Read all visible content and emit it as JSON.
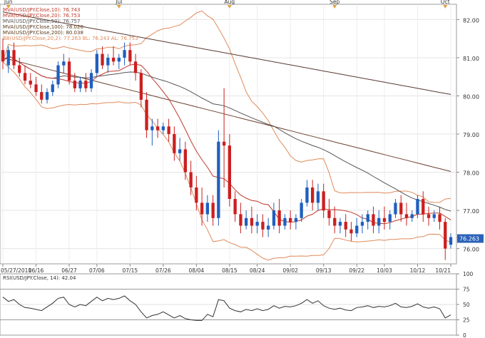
{
  "chart_data": [
    {
      "type": "candlestick",
      "instrument": "USD/JPY",
      "month_labels": [
        "Jun",
        "Jul",
        "Aug",
        "Sep",
        "Oct"
      ],
      "date_labels": [
        "05/27/2011",
        "06/16",
        "06/27",
        "07/06",
        "07/15",
        "07/26",
        "08/04",
        "08/15",
        "08/24",
        "09/02",
        "09/13",
        "09/22",
        "10/03",
        "10/12",
        "10/21"
      ],
      "y_ticks": [
        "82.00",
        "81.00",
        "80.00",
        "79.00",
        "78.00",
        "77.00",
        "76.00"
      ],
      "ylim": [
        75.6,
        82.4
      ],
      "last_price": "76.263",
      "legend": [
        {
          "text": "MVA(USD/JPY.Close,10): 76.743",
          "color": "#c0392b"
        },
        {
          "text": "MVA(USD/JPY.Close,20): 76.753",
          "color": "#c0392b"
        },
        {
          "text": "MVA(USD/JPY.Close,50): 76.757",
          "color": "#555555"
        },
        {
          "text": "MVA(USD/JPY.Close,100): 78.020",
          "color": "#5a3a1a"
        },
        {
          "text": "MVA(USD/JPY.Close,200): 80.038",
          "color": "#5a3a1a"
        },
        {
          "text": "BB(USD/JPY.Close,20,2): 77.263  BL: 76.243  AL: 76.753",
          "color": "#e08a5a"
        }
      ],
      "candles": [
        [
          81.2,
          81.5,
          80.9,
          80.7
        ],
        [
          80.8,
          81.3,
          81.2,
          80.6
        ],
        [
          81.2,
          81.4,
          80.8,
          80.7
        ],
        [
          80.8,
          81.0,
          80.6,
          80.5
        ],
        [
          80.6,
          80.8,
          80.4,
          80.3
        ],
        [
          80.4,
          80.6,
          80.3,
          80.2
        ],
        [
          80.3,
          80.5,
          80.1,
          80.0
        ],
        [
          80.1,
          80.3,
          79.9,
          79.8
        ],
        [
          79.9,
          80.2,
          80.1,
          79.8
        ],
        [
          80.1,
          80.4,
          80.3,
          80.0
        ],
        [
          80.3,
          80.9,
          80.8,
          80.2
        ],
        [
          80.8,
          81.1,
          80.9,
          80.6
        ],
        [
          80.9,
          81.0,
          80.4,
          80.3
        ],
        [
          80.4,
          80.6,
          80.2,
          80.1
        ],
        [
          80.2,
          80.5,
          80.4,
          80.1
        ],
        [
          80.4,
          80.6,
          80.2,
          80.1
        ],
        [
          80.2,
          80.7,
          80.6,
          80.1
        ],
        [
          80.6,
          81.2,
          81.1,
          80.5
        ],
        [
          81.1,
          81.3,
          80.8,
          80.7
        ],
        [
          80.8,
          81.1,
          81.0,
          80.6
        ],
        [
          81.0,
          81.3,
          80.9,
          80.8
        ],
        [
          80.9,
          81.1,
          81.0,
          80.7
        ],
        [
          81.0,
          81.4,
          81.2,
          80.8
        ],
        [
          81.2,
          81.4,
          80.9,
          80.8
        ],
        [
          80.9,
          81.1,
          80.6,
          80.4
        ],
        [
          80.6,
          80.7,
          79.9,
          79.7
        ],
        [
          79.9,
          80.1,
          79.1,
          78.9
        ],
        [
          79.1,
          79.4,
          79.2,
          78.7
        ],
        [
          79.2,
          79.4,
          79.1,
          78.9
        ],
        [
          79.1,
          79.3,
          79.2,
          79.0
        ],
        [
          79.2,
          79.4,
          79.0,
          78.8
        ],
        [
          79.0,
          79.2,
          78.5,
          78.3
        ],
        [
          78.5,
          78.9,
          78.6,
          78.3
        ],
        [
          78.6,
          78.8,
          78.0,
          77.8
        ],
        [
          78.0,
          78.3,
          77.6,
          77.4
        ],
        [
          77.6,
          77.9,
          77.2,
          77.0
        ],
        [
          77.2,
          77.6,
          76.9,
          76.6
        ],
        [
          76.9,
          77.4,
          77.2,
          76.7
        ],
        [
          77.2,
          77.4,
          76.8,
          76.6
        ],
        [
          76.8,
          79.1,
          78.8,
          76.6
        ],
        [
          78.8,
          80.2,
          78.7,
          77.6
        ],
        [
          78.7,
          79.0,
          77.3,
          77.1
        ],
        [
          77.3,
          77.5,
          76.9,
          76.7
        ],
        [
          76.9,
          77.2,
          76.6,
          76.4
        ],
        [
          76.6,
          77.0,
          76.8,
          76.5
        ],
        [
          76.8,
          77.1,
          76.6,
          76.4
        ],
        [
          76.6,
          76.9,
          76.7,
          76.4
        ],
        [
          76.7,
          76.9,
          76.5,
          76.3
        ],
        [
          76.5,
          76.8,
          76.6,
          76.3
        ],
        [
          76.6,
          77.2,
          77.0,
          76.5
        ],
        [
          77.0,
          77.3,
          76.6,
          76.4
        ],
        [
          76.6,
          76.9,
          76.8,
          76.5
        ],
        [
          76.8,
          77.0,
          76.7,
          76.5
        ],
        [
          76.7,
          76.9,
          76.8,
          76.5
        ],
        [
          76.8,
          77.3,
          77.2,
          76.7
        ],
        [
          77.2,
          77.8,
          77.6,
          77.1
        ],
        [
          77.6,
          77.8,
          77.2,
          77.0
        ],
        [
          77.2,
          77.7,
          77.5,
          77.0
        ],
        [
          77.5,
          77.7,
          77.0,
          76.8
        ],
        [
          77.0,
          77.3,
          76.8,
          76.6
        ],
        [
          76.8,
          77.1,
          76.6,
          76.4
        ],
        [
          76.6,
          76.8,
          76.7,
          76.4
        ],
        [
          76.7,
          76.9,
          76.5,
          76.3
        ],
        [
          76.5,
          76.7,
          76.4,
          76.2
        ],
        [
          76.4,
          76.8,
          76.6,
          76.3
        ],
        [
          76.6,
          76.9,
          76.7,
          76.4
        ],
        [
          76.7,
          77.0,
          76.9,
          76.5
        ],
        [
          76.9,
          77.1,
          76.6,
          76.4
        ],
        [
          76.6,
          77.0,
          76.8,
          76.4
        ],
        [
          76.8,
          77.1,
          76.7,
          76.5
        ],
        [
          76.7,
          77.0,
          76.9,
          76.5
        ],
        [
          76.9,
          77.3,
          77.2,
          76.8
        ],
        [
          77.2,
          77.4,
          76.9,
          76.7
        ],
        [
          76.9,
          77.2,
          76.8,
          76.6
        ],
        [
          76.8,
          77.0,
          76.9,
          76.7
        ],
        [
          76.9,
          77.4,
          77.3,
          76.8
        ],
        [
          77.3,
          77.5,
          76.9,
          76.7
        ],
        [
          76.9,
          77.1,
          76.8,
          76.6
        ],
        [
          76.8,
          77.0,
          76.9,
          76.7
        ],
        [
          76.9,
          77.1,
          76.7,
          76.5
        ],
        [
          76.7,
          76.8,
          76.0,
          75.7
        ],
        [
          76.1,
          76.4,
          76.3,
          76.0
        ]
      ]
    },
    {
      "type": "line",
      "label": "RSI(USD/JPY.Close, 14): 42.04",
      "y_ticks": [
        "100",
        "75",
        "50",
        "25",
        "0"
      ],
      "ylim": [
        0,
        100
      ],
      "values": [
        62,
        55,
        58,
        50,
        45,
        44,
        42,
        40,
        46,
        52,
        60,
        62,
        50,
        46,
        50,
        48,
        55,
        62,
        56,
        60,
        58,
        60,
        64,
        56,
        50,
        38,
        28,
        32,
        34,
        38,
        33,
        28,
        32,
        27,
        25,
        24,
        24,
        34,
        30,
        58,
        56,
        44,
        40,
        38,
        42,
        40,
        43,
        40,
        42,
        48,
        44,
        47,
        46,
        48,
        52,
        58,
        52,
        56,
        48,
        44,
        42,
        44,
        41,
        40,
        45,
        46,
        48,
        45,
        47,
        46,
        48,
        52,
        46,
        45,
        47,
        51,
        46,
        44,
        46,
        43,
        28,
        33
      ]
    }
  ]
}
